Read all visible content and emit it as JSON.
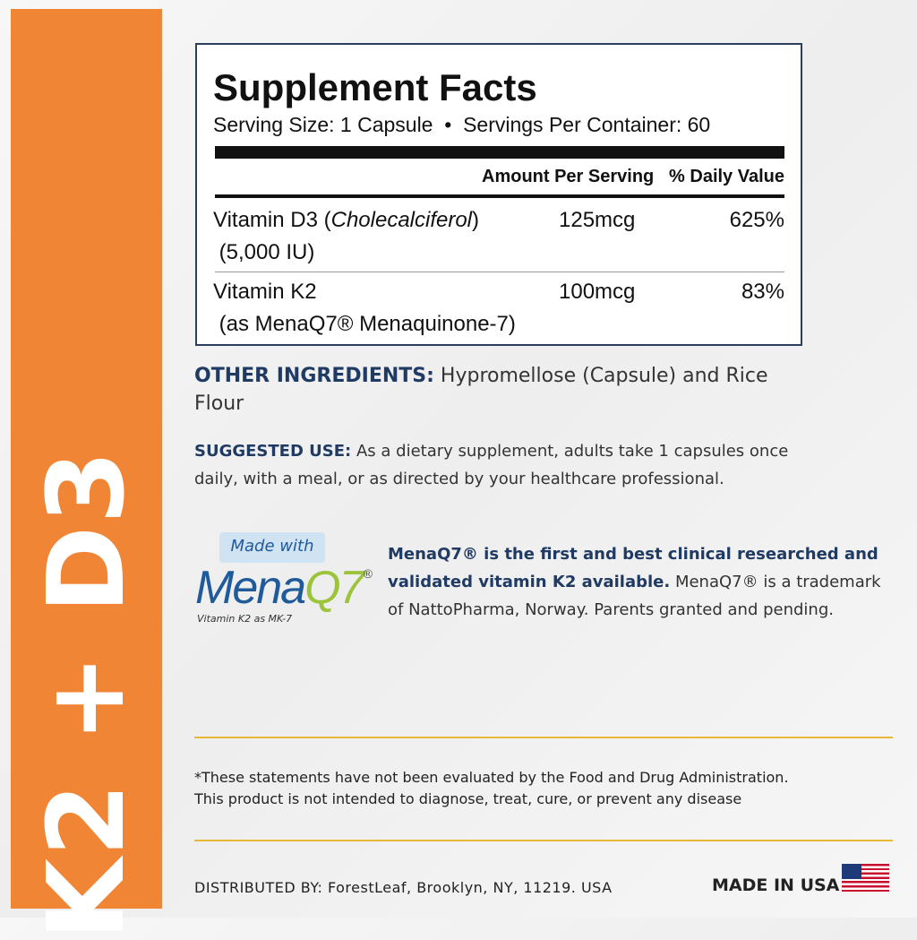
{
  "side_label": "K2 + D3",
  "facts": {
    "title": "Supplement Facts",
    "serving": "Serving Size: 1 Capsule  •  Servings Per Container: 60",
    "col_amount": "Amount Per Serving",
    "col_dv": "% Daily Value",
    "rows": [
      {
        "name": "Vitamin D3 (",
        "name_italic": "Cholecalciferol",
        "name_end": ")",
        "sub": "(5,000 IU)",
        "amount": "125mcg",
        "dv": "625%"
      },
      {
        "name": "Vitamin K2",
        "sub": "(as MenaQ7® Menaquinone-7)",
        "amount": "100mcg",
        "dv": "83%"
      }
    ]
  },
  "other": {
    "label": "OTHER INGREDIENTS:",
    "text": " Hypromellose (Capsule) and Rice Flour"
  },
  "suggested": {
    "label": "SUGGESTED USE:",
    "text": " As a dietary supplement, adults take 1 capsules once daily, with a meal, or as directed by your healthcare professional."
  },
  "logo": {
    "badge": "Made with",
    "brand": "Mena",
    "brand_q": "Q7",
    "reg": "®",
    "sub": "Vitamin K2 as MK-7"
  },
  "menaq": {
    "bold": "MenaQ7® is the first and best clinical researched and validated vitamin K2 available.",
    "text": " MenaQ7® is a trademark of NattoPharma, Norway. Parents granted and pending."
  },
  "disclaimer": "*These statements have not been evaluated by the Food and Drug Administration. This product is not intended to diagnose, treat, cure, or prevent any disease",
  "distributed": "DISTRIBUTED BY: ForestLeaf, Brooklyn, NY, 11219. USA",
  "made_in": "MADE IN USA"
}
